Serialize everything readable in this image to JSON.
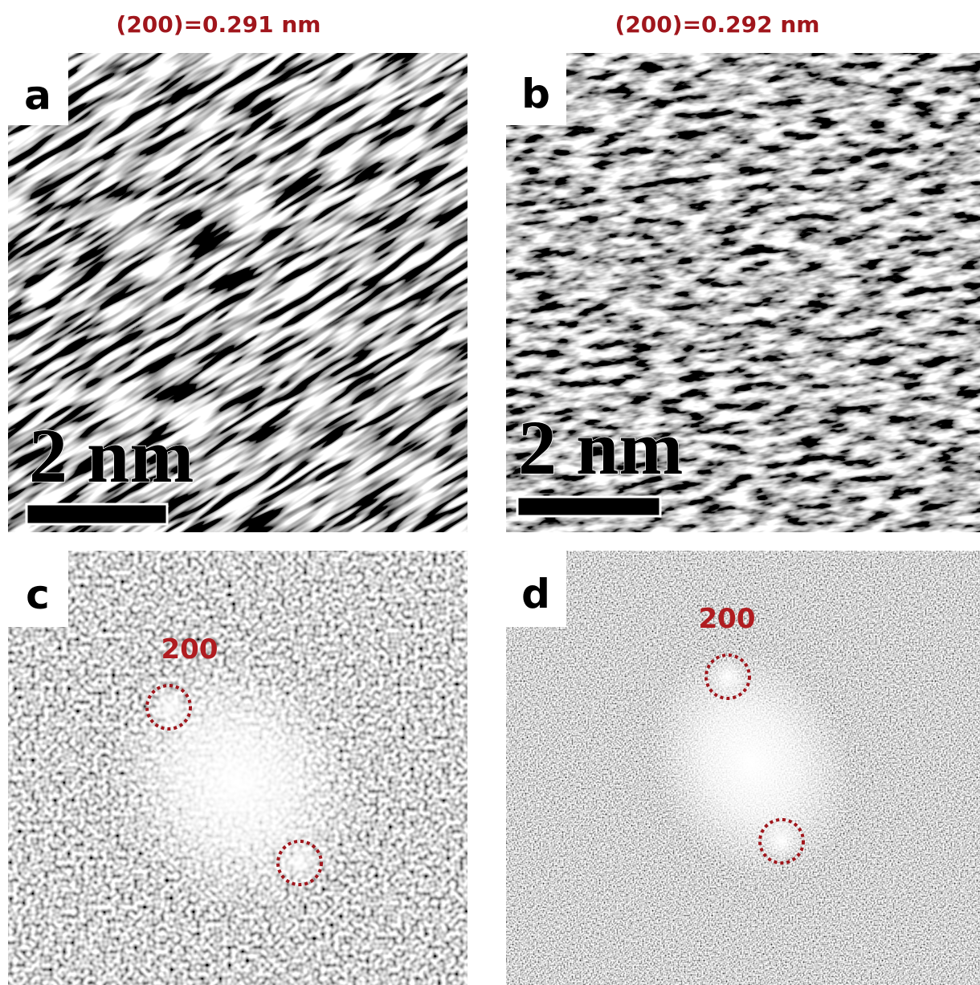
{
  "panels": [
    {
      "label": "a",
      "title": "(200)=0.291 nm",
      "scale_bar": "2 nm"
    },
    {
      "label": "b",
      "title": "(200)=0.292 nm",
      "scale_bar": "2 nm"
    },
    {
      "label": "c",
      "spot_label": "200"
    },
    {
      "label": "d",
      "spot_label": "200"
    }
  ]
}
